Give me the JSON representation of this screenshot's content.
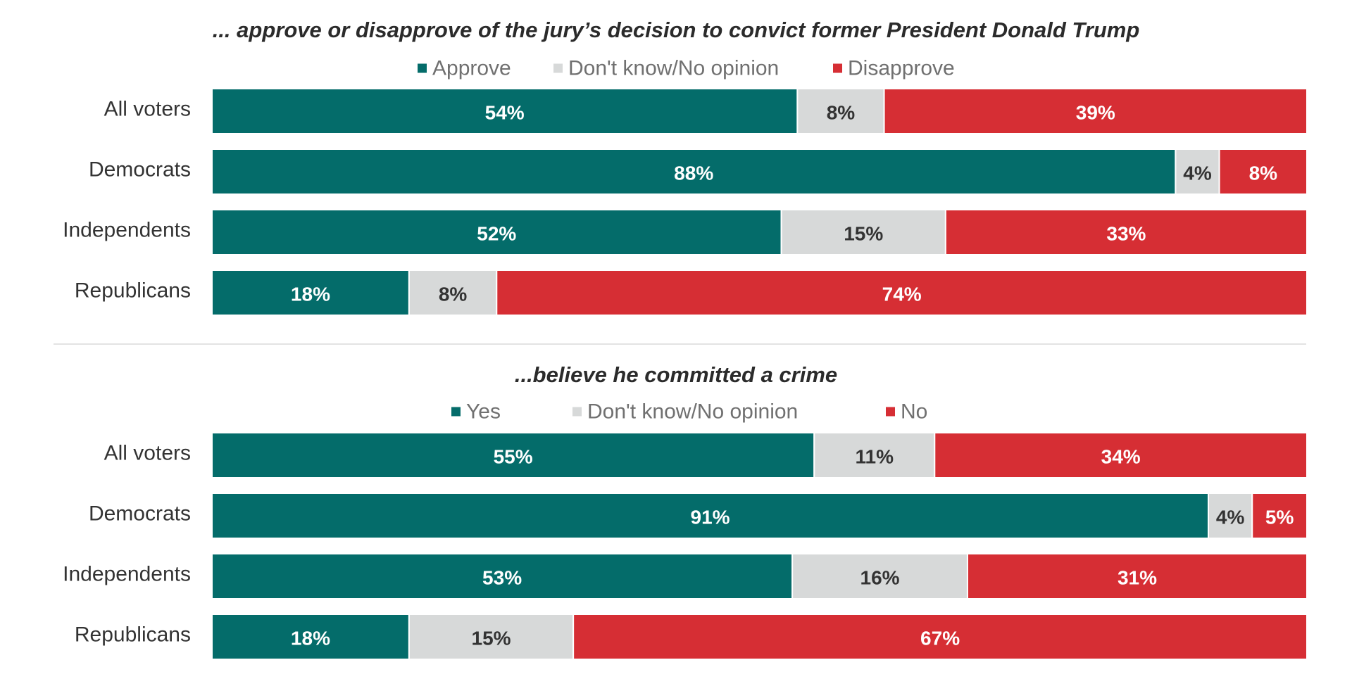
{
  "chart_data": [
    {
      "type": "bar",
      "orientation": "horizontal",
      "stacked": true,
      "title": "... approve or disapprove of the jury’s decision to convict former President Donald Trump",
      "categories": [
        "All voters",
        "Democrats",
        "Independents",
        "Republicans"
      ],
      "series": [
        {
          "name": "Approve",
          "color": "#046C6A",
          "values": [
            54,
            88,
            52,
            18
          ]
        },
        {
          "name": "Don't know/No opinion",
          "color": "#D7D9D9",
          "values": [
            8,
            4,
            15,
            8
          ]
        },
        {
          "name": "Disapprove",
          "color": "#D62E34",
          "values": [
            39,
            8,
            33,
            74
          ]
        }
      ],
      "value_suffix": "%",
      "legend_position": "top-center"
    },
    {
      "type": "bar",
      "orientation": "horizontal",
      "stacked": true,
      "title": "...believe he committed a crime",
      "categories": [
        "All voters",
        "Democrats",
        "Independents",
        "Republicans"
      ],
      "series": [
        {
          "name": "Yes",
          "color": "#046C6A",
          "values": [
            55,
            91,
            53,
            18
          ]
        },
        {
          "name": "Don't know/No opinion",
          "color": "#D7D9D9",
          "values": [
            11,
            4,
            16,
            15
          ]
        },
        {
          "name": "No",
          "color": "#D62E34",
          "values": [
            34,
            5,
            31,
            67
          ]
        }
      ],
      "value_suffix": "%",
      "legend_position": "top-center"
    }
  ]
}
